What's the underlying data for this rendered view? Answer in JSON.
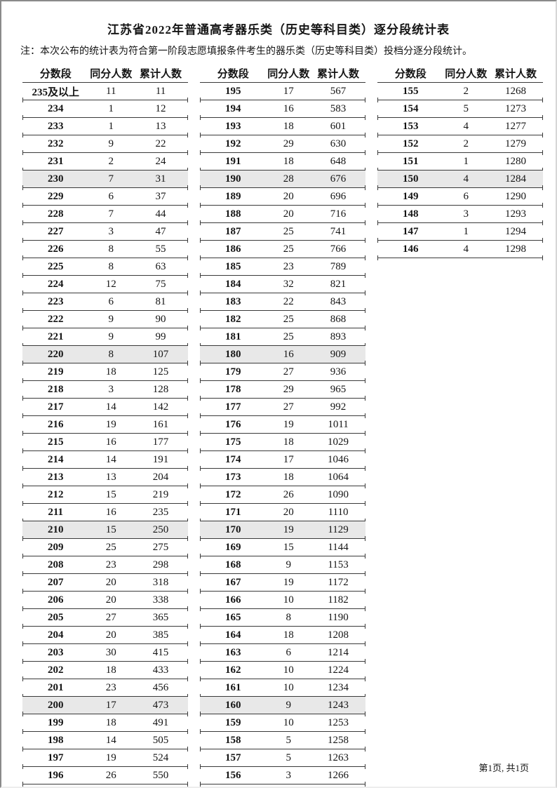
{
  "page": {
    "title": "江苏省2022年普通高考器乐类（历史等科目类）逐分段统计表",
    "note": "注：本次公布的统计表为符合第一阶段志愿填报条件考生的器乐类（历史等科目类）投档分逐分段统计。",
    "footer": "第1页, 共1页"
  },
  "columns": [
    "分数段",
    "同分人数",
    "累计人数"
  ],
  "colors": {
    "highlight_row": "#e8e8e8",
    "table_line": "#3a3a3a"
  },
  "tables": [
    {
      "rows": [
        [
          "235及以上",
          11,
          11,
          false
        ],
        [
          "234",
          1,
          12,
          false
        ],
        [
          "233",
          1,
          13,
          false
        ],
        [
          "232",
          9,
          22,
          false
        ],
        [
          "231",
          2,
          24,
          false
        ],
        [
          "230",
          7,
          31,
          true
        ],
        [
          "229",
          6,
          37,
          false
        ],
        [
          "228",
          7,
          44,
          false
        ],
        [
          "227",
          3,
          47,
          false
        ],
        [
          "226",
          8,
          55,
          false
        ],
        [
          "225",
          8,
          63,
          false
        ],
        [
          "224",
          12,
          75,
          false
        ],
        [
          "223",
          6,
          81,
          false
        ],
        [
          "222",
          9,
          90,
          false
        ],
        [
          "221",
          9,
          99,
          false
        ],
        [
          "220",
          8,
          107,
          true
        ],
        [
          "219",
          18,
          125,
          false
        ],
        [
          "218",
          3,
          128,
          false
        ],
        [
          "217",
          14,
          142,
          false
        ],
        [
          "216",
          19,
          161,
          false
        ],
        [
          "215",
          16,
          177,
          false
        ],
        [
          "214",
          14,
          191,
          false
        ],
        [
          "213",
          13,
          204,
          false
        ],
        [
          "212",
          15,
          219,
          false
        ],
        [
          "211",
          16,
          235,
          false
        ],
        [
          "210",
          15,
          250,
          true
        ],
        [
          "209",
          25,
          275,
          false
        ],
        [
          "208",
          23,
          298,
          false
        ],
        [
          "207",
          20,
          318,
          false
        ],
        [
          "206",
          20,
          338,
          false
        ],
        [
          "205",
          27,
          365,
          false
        ],
        [
          "204",
          20,
          385,
          false
        ],
        [
          "203",
          30,
          415,
          false
        ],
        [
          "202",
          18,
          433,
          false
        ],
        [
          "201",
          23,
          456,
          false
        ],
        [
          "200",
          17,
          473,
          true
        ],
        [
          "199",
          18,
          491,
          false
        ],
        [
          "198",
          14,
          505,
          false
        ],
        [
          "197",
          19,
          524,
          false
        ],
        [
          "196",
          26,
          550,
          false
        ]
      ]
    },
    {
      "rows": [
        [
          "195",
          17,
          567,
          false
        ],
        [
          "194",
          16,
          583,
          false
        ],
        [
          "193",
          18,
          601,
          false
        ],
        [
          "192",
          29,
          630,
          false
        ],
        [
          "191",
          18,
          648,
          false
        ],
        [
          "190",
          28,
          676,
          true
        ],
        [
          "189",
          20,
          696,
          false
        ],
        [
          "188",
          20,
          716,
          false
        ],
        [
          "187",
          25,
          741,
          false
        ],
        [
          "186",
          25,
          766,
          false
        ],
        [
          "185",
          23,
          789,
          false
        ],
        [
          "184",
          32,
          821,
          false
        ],
        [
          "183",
          22,
          843,
          false
        ],
        [
          "182",
          25,
          868,
          false
        ],
        [
          "181",
          25,
          893,
          false
        ],
        [
          "180",
          16,
          909,
          true
        ],
        [
          "179",
          27,
          936,
          false
        ],
        [
          "178",
          29,
          965,
          false
        ],
        [
          "177",
          27,
          992,
          false
        ],
        [
          "176",
          19,
          1011,
          false
        ],
        [
          "175",
          18,
          1029,
          false
        ],
        [
          "174",
          17,
          1046,
          false
        ],
        [
          "173",
          18,
          1064,
          false
        ],
        [
          "172",
          26,
          1090,
          false
        ],
        [
          "171",
          20,
          1110,
          false
        ],
        [
          "170",
          19,
          1129,
          true
        ],
        [
          "169",
          15,
          1144,
          false
        ],
        [
          "168",
          9,
          1153,
          false
        ],
        [
          "167",
          19,
          1172,
          false
        ],
        [
          "166",
          10,
          1182,
          false
        ],
        [
          "165",
          8,
          1190,
          false
        ],
        [
          "164",
          18,
          1208,
          false
        ],
        [
          "163",
          6,
          1214,
          false
        ],
        [
          "162",
          10,
          1224,
          false
        ],
        [
          "161",
          10,
          1234,
          false
        ],
        [
          "160",
          9,
          1243,
          true
        ],
        [
          "159",
          10,
          1253,
          false
        ],
        [
          "158",
          5,
          1258,
          false
        ],
        [
          "157",
          5,
          1263,
          false
        ],
        [
          "156",
          3,
          1266,
          false
        ]
      ]
    },
    {
      "rows": [
        [
          "155",
          2,
          1268,
          false
        ],
        [
          "154",
          5,
          1273,
          false
        ],
        [
          "153",
          4,
          1277,
          false
        ],
        [
          "152",
          2,
          1279,
          false
        ],
        [
          "151",
          1,
          1280,
          false
        ],
        [
          "150",
          4,
          1284,
          true
        ],
        [
          "149",
          6,
          1290,
          false
        ],
        [
          "148",
          3,
          1293,
          false
        ],
        [
          "147",
          1,
          1294,
          false
        ],
        [
          "146",
          4,
          1298,
          false
        ]
      ]
    }
  ]
}
